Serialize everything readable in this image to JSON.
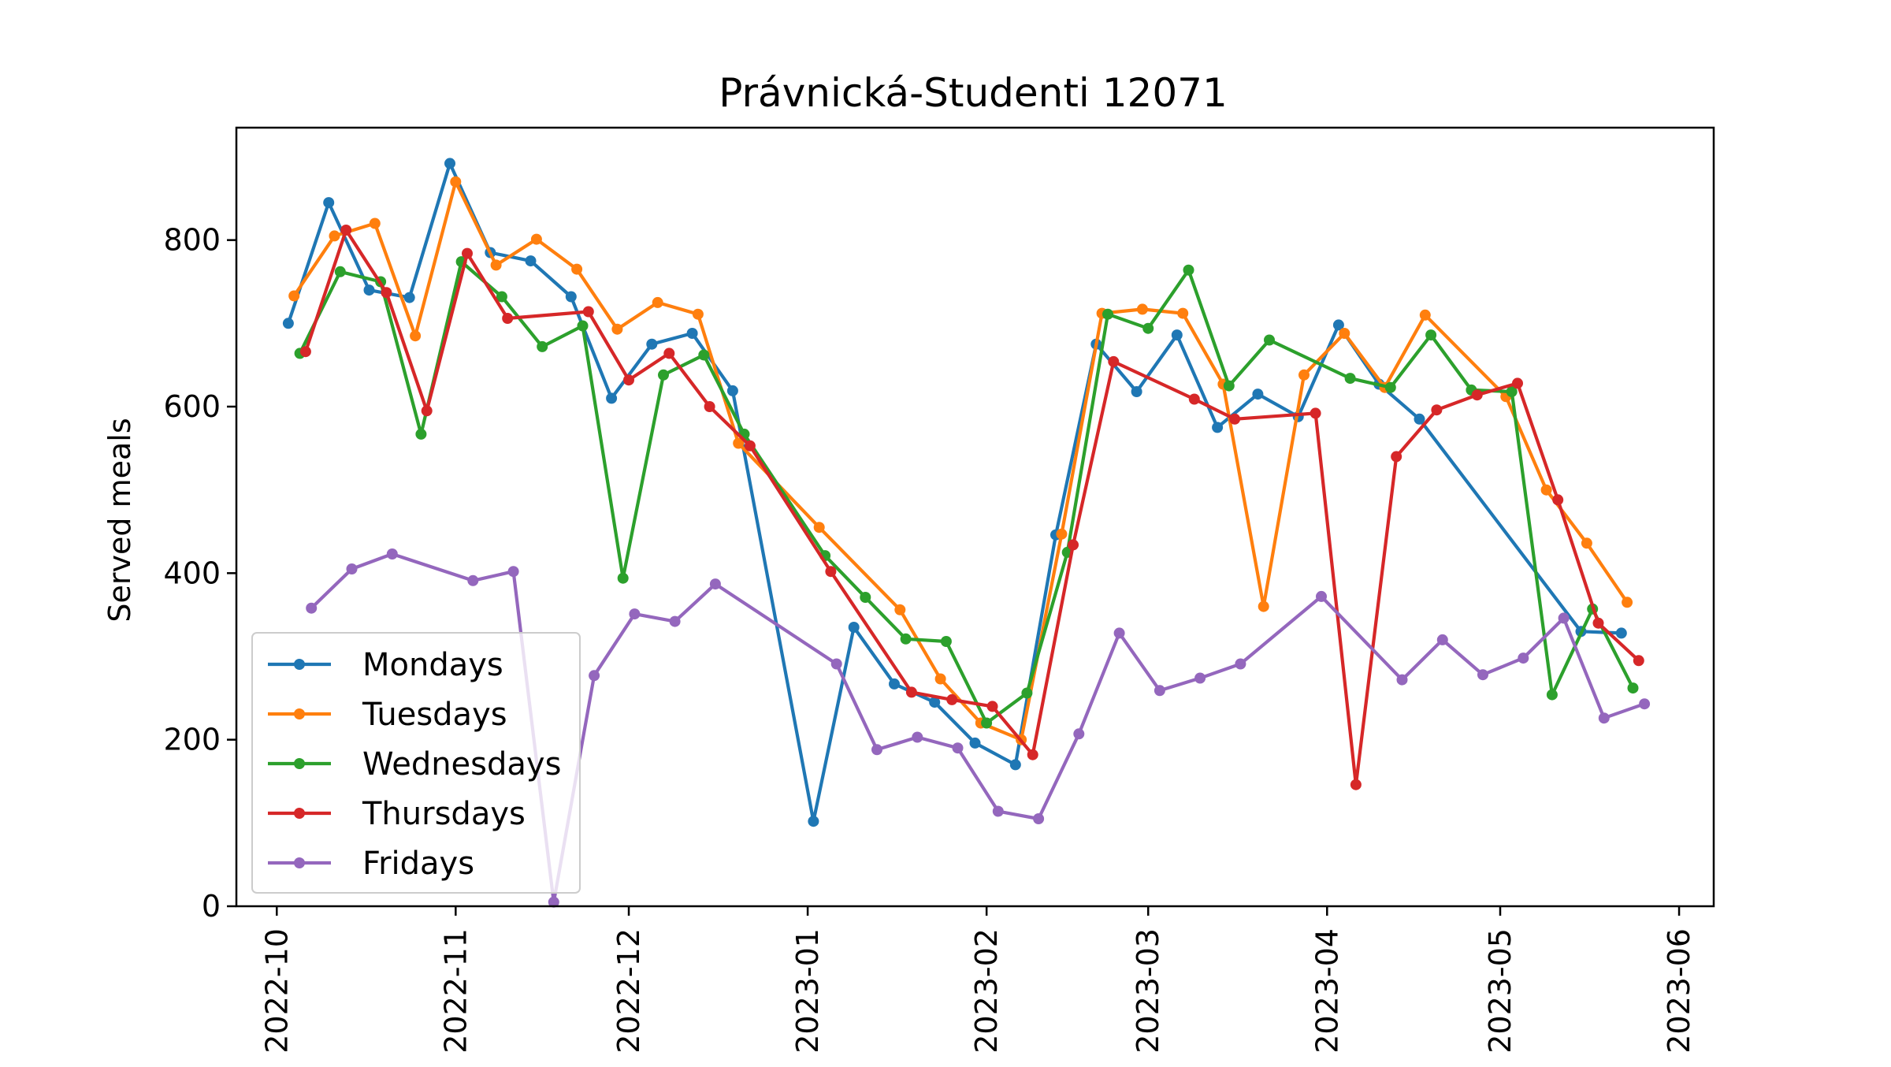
{
  "chart_data": {
    "type": "line",
    "title": "Právnická-Studenti 12071",
    "xlabel": "",
    "ylabel": "Served meals",
    "x_axis": {
      "type": "date",
      "range": [
        "2022-09-24",
        "2023-06-07"
      ],
      "tick_labels": [
        "2022-10",
        "2022-11",
        "2022-12",
        "2023-01",
        "2023-02",
        "2023-03",
        "2023-04",
        "2023-05",
        "2023-06"
      ]
    },
    "y_axis": {
      "range": [
        0,
        935
      ],
      "ticks": [
        0,
        200,
        400,
        600,
        800
      ],
      "tick_labels": [
        "0",
        "200",
        "400",
        "600",
        "800"
      ]
    },
    "grid": false,
    "legend": {
      "placement": "lower left"
    },
    "series": [
      {
        "name": "Mondays",
        "color": "#1f77b4",
        "points": [
          [
            "2022-10-03",
            700
          ],
          [
            "2022-10-10",
            845
          ],
          [
            "2022-10-17",
            740
          ],
          [
            "2022-10-24",
            731
          ],
          [
            "2022-10-31",
            892
          ],
          [
            "2022-11-07",
            785
          ],
          [
            "2022-11-14",
            775
          ],
          [
            "2022-11-21",
            732
          ],
          [
            "2022-11-28",
            610
          ],
          [
            "2022-12-05",
            675
          ],
          [
            "2022-12-12",
            688
          ],
          [
            "2022-12-19",
            619
          ],
          [
            "2023-01-02",
            102
          ],
          [
            "2023-01-09",
            335
          ],
          [
            "2023-01-16",
            267
          ],
          [
            "2023-01-23",
            245
          ],
          [
            "2023-01-30",
            196
          ],
          [
            "2023-02-06",
            170
          ],
          [
            "2023-02-13",
            446
          ],
          [
            "2023-02-20",
            675
          ],
          [
            "2023-02-27",
            618
          ],
          [
            "2023-03-06",
            686
          ],
          [
            "2023-03-13",
            575
          ],
          [
            "2023-03-20",
            615
          ],
          [
            "2023-03-27",
            588
          ],
          [
            "2023-04-03",
            698
          ],
          [
            "2023-04-10",
            627
          ],
          [
            "2023-04-17",
            585
          ],
          [
            "2023-05-15",
            330
          ],
          [
            "2023-05-22",
            328
          ]
        ]
      },
      {
        "name": "Tuesdays",
        "color": "#ff7f0e",
        "points": [
          [
            "2022-10-04",
            733
          ],
          [
            "2022-10-11",
            805
          ],
          [
            "2022-10-18",
            820
          ],
          [
            "2022-10-25",
            685
          ],
          [
            "2022-11-01",
            870
          ],
          [
            "2022-11-08",
            770
          ],
          [
            "2022-11-15",
            801
          ],
          [
            "2022-11-22",
            765
          ],
          [
            "2022-11-29",
            693
          ],
          [
            "2022-12-06",
            725
          ],
          [
            "2022-12-13",
            711
          ],
          [
            "2022-12-20",
            556
          ],
          [
            "2023-01-03",
            455
          ],
          [
            "2023-01-17",
            356
          ],
          [
            "2023-01-24",
            273
          ],
          [
            "2023-01-31",
            220
          ],
          [
            "2023-02-07",
            200
          ],
          [
            "2023-02-14",
            447
          ],
          [
            "2023-02-21",
            712
          ],
          [
            "2023-02-28",
            717
          ],
          [
            "2023-03-07",
            712
          ],
          [
            "2023-03-14",
            627
          ],
          [
            "2023-03-21",
            360
          ],
          [
            "2023-03-28",
            638
          ],
          [
            "2023-04-04",
            688
          ],
          [
            "2023-04-11",
            623
          ],
          [
            "2023-04-18",
            710
          ],
          [
            "2023-05-02",
            612
          ],
          [
            "2023-05-09",
            500
          ],
          [
            "2023-05-16",
            436
          ],
          [
            "2023-05-23",
            365
          ]
        ]
      },
      {
        "name": "Wednesdays",
        "color": "#2ca02c",
        "points": [
          [
            "2022-10-05",
            664
          ],
          [
            "2022-10-12",
            762
          ],
          [
            "2022-10-19",
            750
          ],
          [
            "2022-10-26",
            567
          ],
          [
            "2022-11-02",
            774
          ],
          [
            "2022-11-09",
            732
          ],
          [
            "2022-11-16",
            672
          ],
          [
            "2022-11-23",
            697
          ],
          [
            "2022-11-30",
            394
          ],
          [
            "2022-12-07",
            638
          ],
          [
            "2022-12-14",
            662
          ],
          [
            "2022-12-21",
            567
          ],
          [
            "2023-01-04",
            421
          ],
          [
            "2023-01-11",
            371
          ],
          [
            "2023-01-18",
            321
          ],
          [
            "2023-01-25",
            318
          ],
          [
            "2023-02-01",
            220
          ],
          [
            "2023-02-08",
            256
          ],
          [
            "2023-02-15",
            425
          ],
          [
            "2023-02-22",
            711
          ],
          [
            "2023-03-01",
            694
          ],
          [
            "2023-03-08",
            764
          ],
          [
            "2023-03-15",
            625
          ],
          [
            "2023-03-22",
            680
          ],
          [
            "2023-04-05",
            634
          ],
          [
            "2023-04-12",
            623
          ],
          [
            "2023-04-19",
            686
          ],
          [
            "2023-04-26",
            620
          ],
          [
            "2023-05-03",
            618
          ],
          [
            "2023-05-10",
            254
          ],
          [
            "2023-05-17",
            357
          ],
          [
            "2023-05-24",
            262
          ]
        ]
      },
      {
        "name": "Thursdays",
        "color": "#d62728",
        "points": [
          [
            "2022-10-06",
            666
          ],
          [
            "2022-10-13",
            812
          ],
          [
            "2022-10-20",
            737
          ],
          [
            "2022-10-27",
            595
          ],
          [
            "2022-11-03",
            784
          ],
          [
            "2022-11-10",
            706
          ],
          [
            "2022-11-24",
            714
          ],
          [
            "2022-12-01",
            632
          ],
          [
            "2022-12-08",
            664
          ],
          [
            "2022-12-15",
            600
          ],
          [
            "2022-12-22",
            553
          ],
          [
            "2023-01-05",
            402
          ],
          [
            "2023-01-19",
            257
          ],
          [
            "2023-01-26",
            248
          ],
          [
            "2023-02-02",
            240
          ],
          [
            "2023-02-09",
            182
          ],
          [
            "2023-02-16",
            434
          ],
          [
            "2023-02-23",
            654
          ],
          [
            "2023-03-09",
            609
          ],
          [
            "2023-03-16",
            585
          ],
          [
            "2023-03-30",
            592
          ],
          [
            "2023-04-06",
            146
          ],
          [
            "2023-04-13",
            540
          ],
          [
            "2023-04-20",
            596
          ],
          [
            "2023-04-27",
            614
          ],
          [
            "2023-05-04",
            628
          ],
          [
            "2023-05-11",
            488
          ],
          [
            "2023-05-18",
            340
          ],
          [
            "2023-05-25",
            295
          ]
        ]
      },
      {
        "name": "Fridays",
        "color": "#9467bd",
        "points": [
          [
            "2022-10-07",
            358
          ],
          [
            "2022-10-14",
            405
          ],
          [
            "2022-10-21",
            423
          ],
          [
            "2022-11-04",
            391
          ],
          [
            "2022-11-11",
            402
          ],
          [
            "2022-11-18",
            5
          ],
          [
            "2022-11-25",
            277
          ],
          [
            "2022-12-02",
            351
          ],
          [
            "2022-12-09",
            342
          ],
          [
            "2022-12-16",
            387
          ],
          [
            "2023-01-06",
            291
          ],
          [
            "2023-01-13",
            188
          ],
          [
            "2023-01-20",
            203
          ],
          [
            "2023-01-27",
            190
          ],
          [
            "2023-02-03",
            114
          ],
          [
            "2023-02-10",
            105
          ],
          [
            "2023-02-17",
            207
          ],
          [
            "2023-02-24",
            328
          ],
          [
            "2023-03-03",
            259
          ],
          [
            "2023-03-10",
            274
          ],
          [
            "2023-03-17",
            291
          ],
          [
            "2023-03-31",
            372
          ],
          [
            "2023-04-14",
            272
          ],
          [
            "2023-04-21",
            320
          ],
          [
            "2023-04-28",
            278
          ],
          [
            "2023-05-05",
            298
          ],
          [
            "2023-05-12",
            346
          ],
          [
            "2023-05-19",
            226
          ],
          [
            "2023-05-26",
            243
          ]
        ]
      }
    ]
  }
}
